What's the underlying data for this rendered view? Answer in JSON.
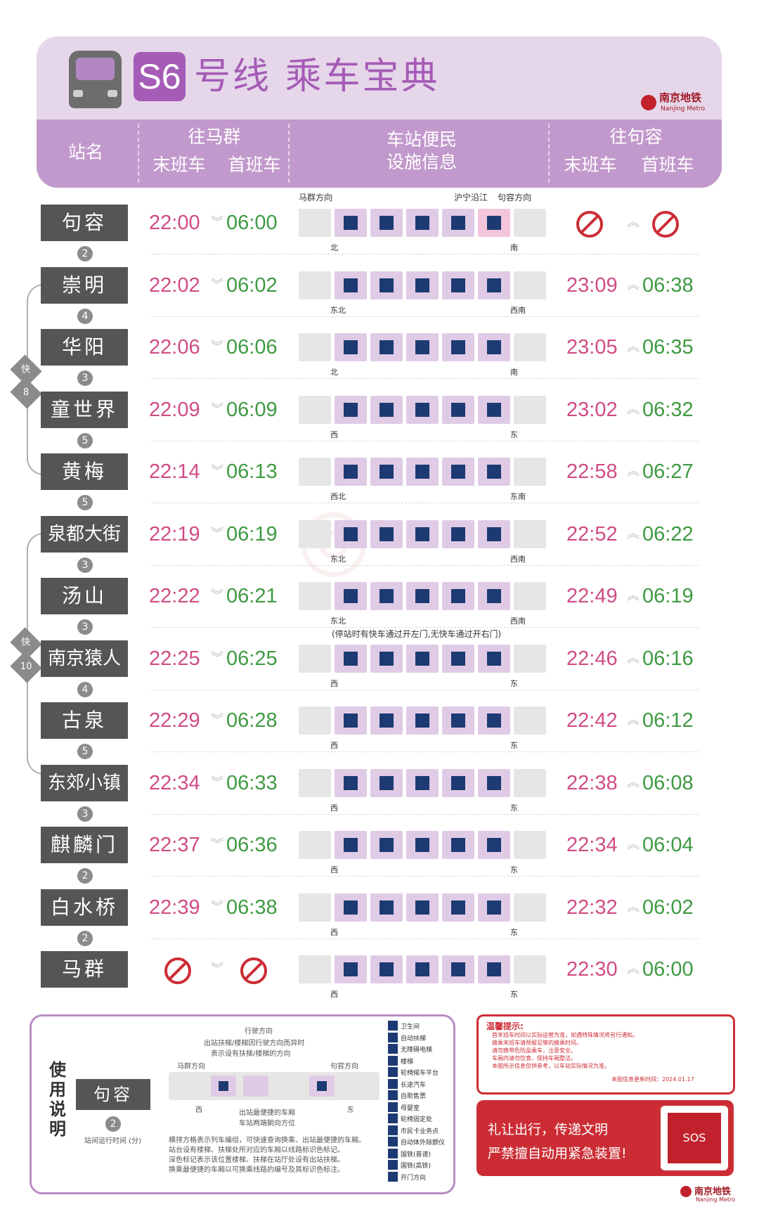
{
  "header": {
    "line": "S6",
    "title": "号线 乘车宝典",
    "logo": "南京地铁",
    "logo_sub": "Nanjing Metro",
    "col_station": "站名",
    "col_to_maqun": "往马群",
    "col_last": "末班车",
    "col_first": "首班车",
    "col_facility_1": "车站便民",
    "col_facility_2": "设施信息",
    "col_to_jurong": "往句容",
    "col_last2": "末班车",
    "col_first2": "首班车"
  },
  "strip_labels": {
    "maqun_dir": "马群方向",
    "huning": "沪宁沿江",
    "jurong_dir": "句容方向",
    "express_note": "(停站时有快车通过开左门,无快车通过开右门)"
  },
  "stations": [
    {
      "name": "句容",
      "mq_last": "22:00",
      "mq_first": "06:00",
      "jr_last": "",
      "jr_first": "",
      "left_dir": "北",
      "right_dir": "南",
      "next": "2"
    },
    {
      "name": "崇明",
      "mq_last": "22:02",
      "mq_first": "06:02",
      "jr_last": "23:09",
      "jr_first": "06:38",
      "left_dir": "东北",
      "right_dir": "西南",
      "next": "4"
    },
    {
      "name": "华阳",
      "mq_last": "22:06",
      "mq_first": "06:06",
      "jr_last": "23:05",
      "jr_first": "06:35",
      "left_dir": "北",
      "right_dir": "南",
      "next": "3"
    },
    {
      "name": "童世界",
      "mq_last": "22:09",
      "mq_first": "06:09",
      "jr_last": "23:02",
      "jr_first": "06:32",
      "left_dir": "西",
      "right_dir": "东",
      "next": "5"
    },
    {
      "name": "黄梅",
      "mq_last": "22:14",
      "mq_first": "06:13",
      "jr_last": "22:58",
      "jr_first": "06:27",
      "left_dir": "西北",
      "right_dir": "东南",
      "next": "5"
    },
    {
      "name": "泉都大街",
      "mq_last": "22:19",
      "mq_first": "06:19",
      "jr_last": "22:52",
      "jr_first": "06:22",
      "left_dir": "东北",
      "right_dir": "西南",
      "next": "3"
    },
    {
      "name": "汤山",
      "mq_last": "22:22",
      "mq_first": "06:21",
      "jr_last": "22:49",
      "jr_first": "06:19",
      "left_dir": "东北",
      "right_dir": "西南",
      "next": "3"
    },
    {
      "name": "南京猿人洞",
      "mq_last": "22:25",
      "mq_first": "06:25",
      "jr_last": "22:46",
      "jr_first": "06:16",
      "left_dir": "西",
      "right_dir": "东",
      "next": "4"
    },
    {
      "name": "古泉",
      "mq_last": "22:29",
      "mq_first": "06:28",
      "jr_last": "22:42",
      "jr_first": "06:12",
      "left_dir": "西",
      "right_dir": "东",
      "next": "5"
    },
    {
      "name": "东郊小镇",
      "mq_last": "22:34",
      "mq_first": "06:33",
      "jr_last": "22:38",
      "jr_first": "06:08",
      "left_dir": "西",
      "right_dir": "东",
      "next": "3"
    },
    {
      "name": "麒麟门",
      "mq_last": "22:37",
      "mq_first": "06:36",
      "jr_last": "22:34",
      "jr_first": "06:04",
      "left_dir": "西",
      "right_dir": "东",
      "next": "2"
    },
    {
      "name": "白水桥",
      "mq_last": "22:39",
      "mq_first": "06:38",
      "jr_last": "22:32",
      "jr_first": "06:02",
      "left_dir": "西",
      "right_dir": "东",
      "next": "2"
    },
    {
      "name": "马群",
      "mq_last": "",
      "mq_first": "",
      "jr_last": "22:30",
      "jr_first": "06:00",
      "left_dir": "西",
      "right_dir": "东",
      "next": ""
    }
  ],
  "express": [
    {
      "label": "快",
      "num": "8"
    },
    {
      "label": "快",
      "num": "10"
    }
  ],
  "usage": {
    "title": "使用说明",
    "station": "句容",
    "interval": "2",
    "interval_note": "站间运行时间 (分)",
    "travel_dir": "行驶方向",
    "exit_note_1": "出站扶梯/楼梯因行驶方向而异时",
    "exit_note_2": "表示设有扶梯/楼梯的方向",
    "left_dir": "马群方向",
    "right_dir": "句容方向",
    "west": "西",
    "east": "东",
    "best_car": "出站最便捷的车厢",
    "car_face": "车站两端朝向方位",
    "notes": [
      "横排方格表示列车编组，可快速查询换乘、出站最便捷的车厢。",
      "站台设有楼梯、扶梯处所对应的车厢以线路标识色标记。",
      "深色标记表示该位置楼梯、扶梯在站厅处设有出站扶梯。",
      "换乘最便捷的车厢以可换乘线路的编号及其标识色标注。"
    ],
    "legend": [
      "卫生间",
      "自动扶梯",
      "无障碍电梯",
      "楼梯",
      "轮椅候车平台",
      "长途汽车",
      "自助售票",
      "母婴室",
      "轮椅固定处",
      "市民卡业务点",
      "自动体外除颤仪",
      "国铁(普速)",
      "国铁(高铁)",
      "开门方向"
    ]
  },
  "tips": {
    "title": "温馨提示:",
    "lines": [
      "首末班车时间以实际运营为准，如遇特殊情况将另行通知。",
      "换乘末班车请预留足够的换乘时间。",
      "请勿携带危险品乘车，注意安全。",
      "车厢内请勿饮食，保持车厢整洁。",
      "本图所示信息仅供参考，以车站实际情况为准。"
    ],
    "updated": "本图信息更新时间：2024.01.17"
  },
  "slogan": {
    "line1": "礼让出行，传递文明",
    "line2": "严禁擅自动用紧急装置!",
    "sos": "SOS"
  },
  "footer_logo": "南京地铁",
  "footer_logo_sub": "Nanjing Metro",
  "colors": {
    "line": "#a55cb6",
    "last_train": "#d04c85",
    "first_train": "#3e9a42",
    "alert": "#cc2d35"
  }
}
